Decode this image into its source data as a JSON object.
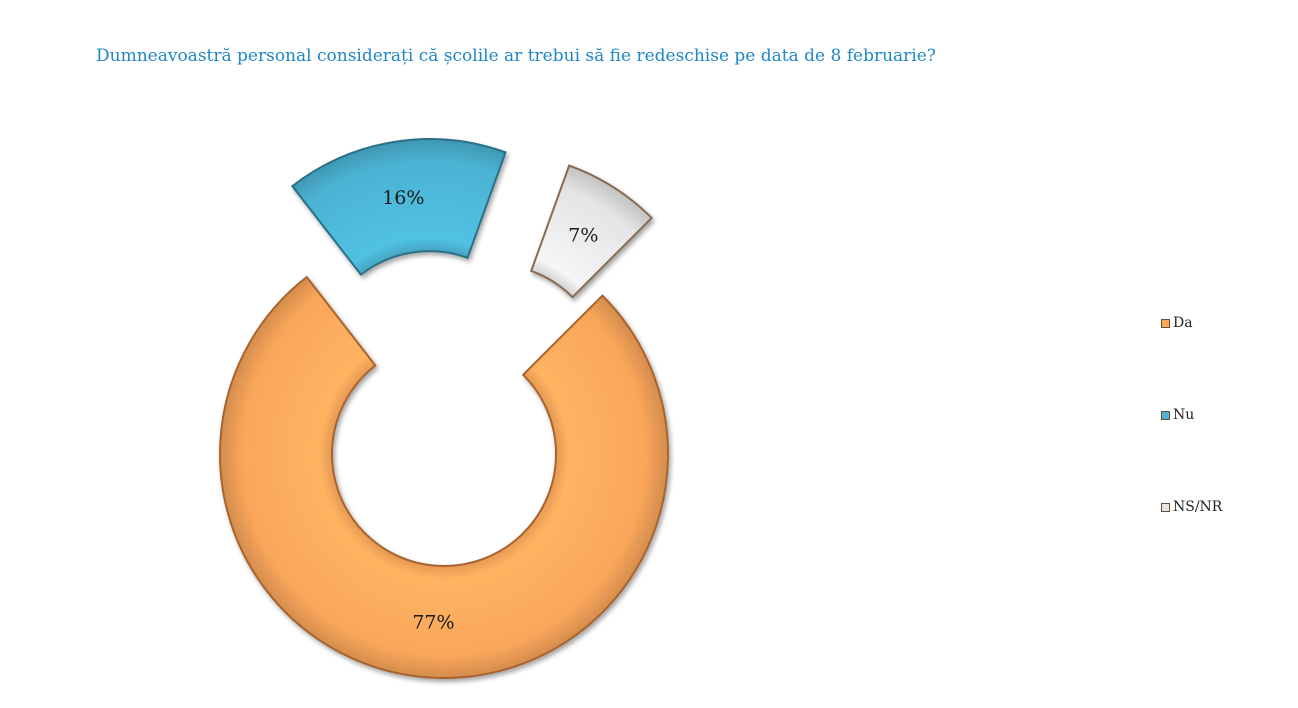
{
  "chart_data": {
    "type": "pie",
    "subtype": "exploded doughnut",
    "title": "Dumneavoastră personal considerați că școlile ar trebui să fie redeschise pe data de 8 februarie?",
    "legend_position": "right",
    "slices": [
      {
        "label": "Da",
        "value": 77,
        "data_label": "77%",
        "color": "#f9a65a",
        "edge": "#a8642f"
      },
      {
        "label": "Nu",
        "value": 16,
        "data_label": "16%",
        "color": "#4bb3d3",
        "edge": "#2a6f88"
      },
      {
        "label": "NS/NR",
        "value": 7,
        "data_label": "7%",
        "color": "#e4e4e4",
        "edge": "#8a6a4e"
      }
    ]
  }
}
